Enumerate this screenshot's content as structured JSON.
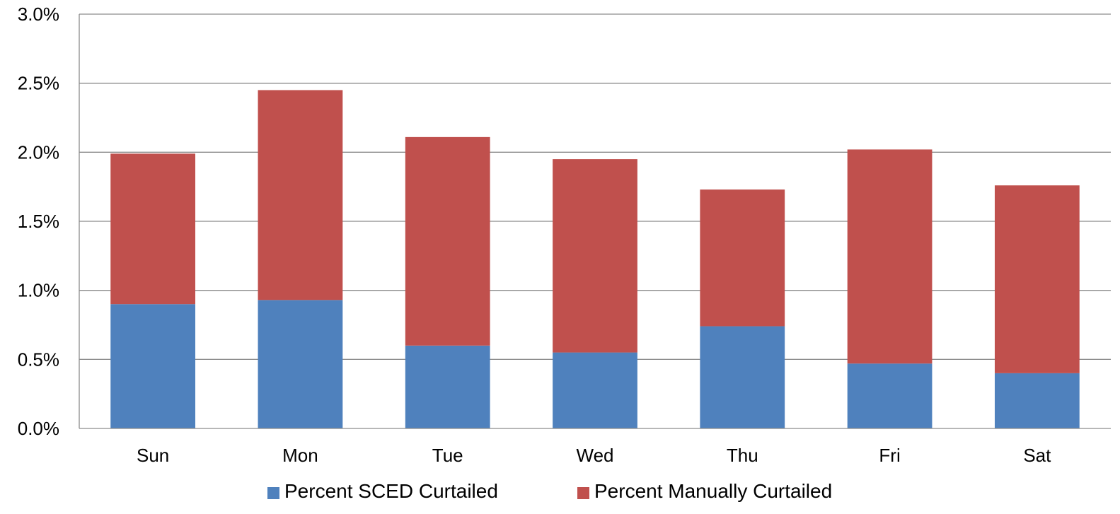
{
  "chart_data": {
    "type": "bar",
    "stacked": true,
    "title": "",
    "xlabel": "",
    "ylabel": "",
    "categories": [
      "Sun",
      "Mon",
      "Tue",
      "Wed",
      "Thu",
      "Fri",
      "Sat"
    ],
    "series": [
      {
        "name": "Percent SCED Curtailed",
        "color": "#4F81BD",
        "values": [
          0.9,
          0.93,
          0.6,
          0.55,
          0.74,
          0.47,
          0.4
        ]
      },
      {
        "name": "Percent Manually Curtailed",
        "color": "#C0504D",
        "values": [
          1.09,
          1.52,
          1.51,
          1.4,
          0.99,
          1.55,
          1.36
        ]
      }
    ],
    "ylim": [
      0,
      3.0
    ],
    "yticks": [
      "0.0%",
      "0.5%",
      "1.0%",
      "1.5%",
      "2.0%",
      "2.5%",
      "3.0%"
    ],
    "ytick_values": [
      0,
      0.5,
      1.0,
      1.5,
      2.0,
      2.5,
      3.0
    ],
    "grid": true,
    "legend_position": "bottom"
  }
}
